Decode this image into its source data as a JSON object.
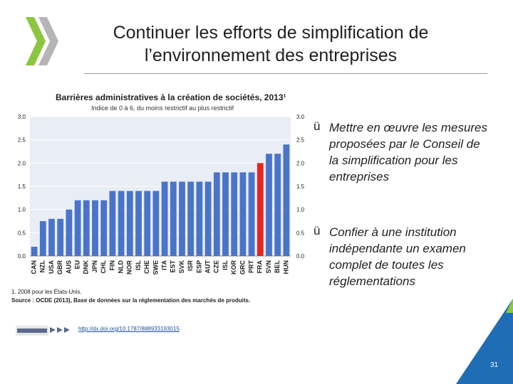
{
  "slide": {
    "title_line1": "Continuer les efforts de simplification de",
    "title_line2": "l’environnement des entreprises",
    "page_number": "31"
  },
  "bullets": [
    {
      "line1": "Mettre en œuvre les mesures",
      "line2": "proposées par le Conseil de",
      "line3": "la simplification pour les",
      "line4": "entreprises"
    },
    {
      "line1": "Confier à une institution",
      "line2": "indépendante un examen",
      "line3": "complet de toutes les",
      "line4": "réglementations"
    }
  ],
  "check_glyph": "ü",
  "footer": {
    "note": "1. 2008 pour les États-Unis.",
    "source": "Source : OCDE (2013), Base de données sur la réglementation des marchés de produits.",
    "link": "http://dx.doi.org/10.1787/888933193015"
  },
  "colors": {
    "bar": "#4a74c9",
    "highlight": "#e8241d",
    "accent_green": "#8cc63f",
    "corner_blue": "#1f6db5",
    "corner_green": "#8cc63f"
  },
  "chart_data": {
    "type": "bar",
    "title": "Barrières administratives à la création de sociétés, 2013¹",
    "subtitle": "Indice de 0 à 6, du moins restrictif au plus restrictif",
    "categories": [
      "CAN",
      "NZL",
      "USA",
      "GBR",
      "AUS",
      "EU",
      "DNK",
      "JPN",
      "CHL",
      "FIN",
      "NLD",
      "NOR",
      "ISL",
      "CHE",
      "SWE",
      "ITA",
      "EST",
      "SVK",
      "ISR",
      "ESP",
      "AUT",
      "CZE",
      "ISL",
      "KOR",
      "GRC",
      "PRT",
      "FRA",
      "SVN",
      "BEL",
      "HUN"
    ],
    "values": [
      0.2,
      0.75,
      0.8,
      0.8,
      1.0,
      1.2,
      1.2,
      1.2,
      1.2,
      1.4,
      1.4,
      1.4,
      1.4,
      1.4,
      1.4,
      1.6,
      1.6,
      1.6,
      1.6,
      1.6,
      1.6,
      1.8,
      1.8,
      1.8,
      1.8,
      1.8,
      2.0,
      2.2,
      2.2,
      2.4
    ],
    "highlight_index": 26,
    "ylim": [
      0,
      3.0
    ],
    "yticks": [
      "0.0",
      "0.5",
      "1.0",
      "1.5",
      "2.0",
      "2.5",
      "3.0"
    ],
    "grid": true
  }
}
